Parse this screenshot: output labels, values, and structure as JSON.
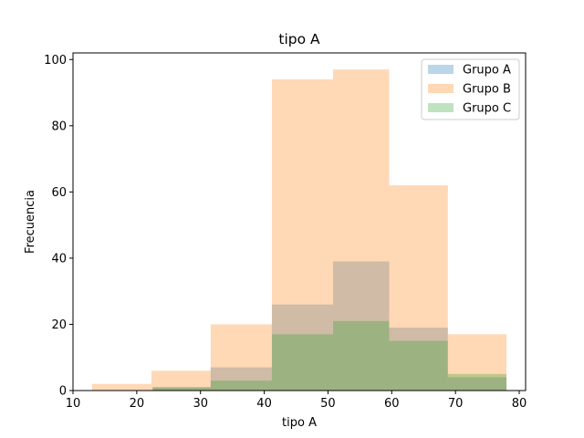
{
  "chart_data": {
    "type": "bar",
    "title": "tipo A",
    "xlabel": "tipo A",
    "ylabel": "Frecuencia",
    "xlim": [
      10,
      81
    ],
    "ylim": [
      0,
      102
    ],
    "xticks": [
      10,
      20,
      30,
      40,
      50,
      60,
      70,
      80
    ],
    "yticks": [
      0,
      20,
      40,
      60,
      80,
      100
    ],
    "legend_placement": "top-right",
    "grid": false,
    "series": [
      {
        "name": "Grupo A",
        "color": "#1f77b4",
        "bins": [
          {
            "x0": 22.5,
            "x1": 31.6,
            "value": 1
          },
          {
            "x0": 31.6,
            "x1": 41.2,
            "value": 7
          },
          {
            "x0": 41.2,
            "x1": 50.8,
            "value": 26
          },
          {
            "x0": 50.8,
            "x1": 59.6,
            "value": 39
          },
          {
            "x0": 59.6,
            "x1": 68.8,
            "value": 19
          },
          {
            "x0": 68.8,
            "x1": 78.0,
            "value": 4
          }
        ]
      },
      {
        "name": "Grupo B",
        "color": "#ff7f0e",
        "bins": [
          {
            "x0": 13.0,
            "x1": 22.3,
            "value": 2
          },
          {
            "x0": 22.3,
            "x1": 31.6,
            "value": 6
          },
          {
            "x0": 31.6,
            "x1": 41.2,
            "value": 20
          },
          {
            "x0": 41.2,
            "x1": 50.8,
            "value": 94
          },
          {
            "x0": 50.8,
            "x1": 59.6,
            "value": 97
          },
          {
            "x0": 59.6,
            "x1": 68.8,
            "value": 62
          },
          {
            "x0": 68.8,
            "x1": 78.0,
            "value": 17
          }
        ]
      },
      {
        "name": "Grupo C",
        "color": "#2ca02c",
        "bins": [
          {
            "x0": 22.5,
            "x1": 31.6,
            "value": 1
          },
          {
            "x0": 31.6,
            "x1": 41.2,
            "value": 3
          },
          {
            "x0": 41.2,
            "x1": 50.8,
            "value": 17
          },
          {
            "x0": 50.8,
            "x1": 59.6,
            "value": 21
          },
          {
            "x0": 59.6,
            "x1": 68.8,
            "value": 15
          },
          {
            "x0": 68.8,
            "x1": 78.0,
            "value": 5
          }
        ]
      }
    ]
  }
}
